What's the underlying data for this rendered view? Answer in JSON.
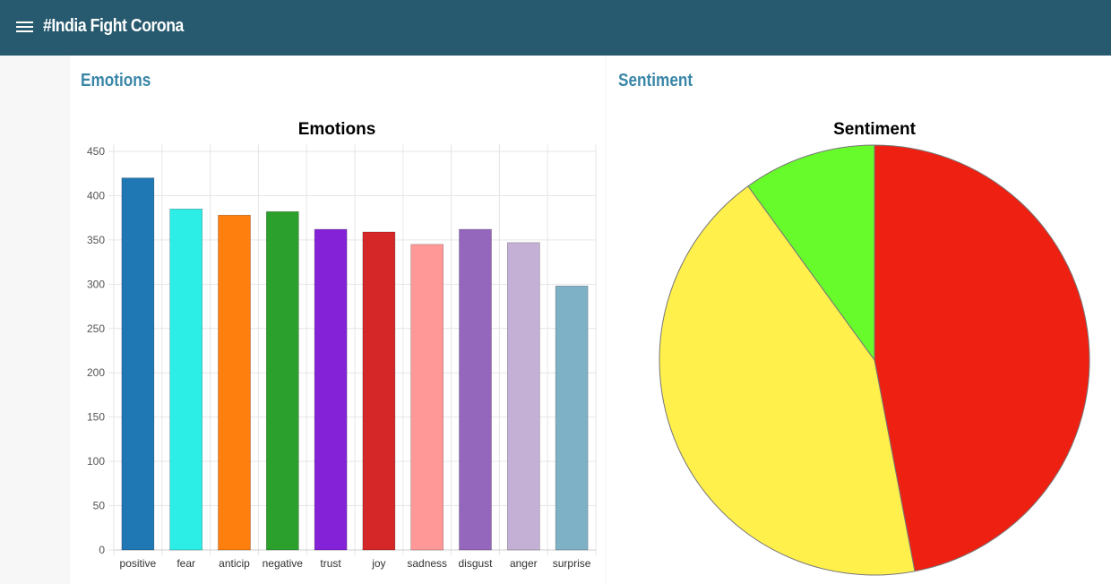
{
  "header": {
    "title": "#India Fight Corona",
    "menu_icon": "hamburger-menu-icon",
    "background": "#275a6e"
  },
  "panels": {
    "emotions": {
      "heading": "Emotions"
    },
    "sentiment": {
      "heading": "Sentiment"
    }
  },
  "chart_data": [
    {
      "type": "bar",
      "title": "Emotions",
      "categories": [
        "positive",
        "fear",
        "anticip",
        "negative",
        "trust",
        "joy",
        "sadness",
        "disgust",
        "anger",
        "surprise"
      ],
      "values": [
        420,
        385,
        378,
        382,
        362,
        359,
        345,
        362,
        347,
        298
      ],
      "colors": [
        "#1f77b4",
        "#2ceee6",
        "#ff7f0e",
        "#2ca02c",
        "#8322d6",
        "#d62728",
        "#ff9896",
        "#9467bd",
        "#c5b0d5",
        "#7fb1c6"
      ],
      "ylim": [
        0,
        450
      ],
      "yticks": [
        0,
        50,
        100,
        150,
        200,
        250,
        300,
        350,
        400,
        450
      ],
      "grid": true,
      "xlabel": "",
      "ylabel": ""
    },
    {
      "type": "pie",
      "title": "Sentiment",
      "values": [
        47,
        43,
        10
      ],
      "colors": [
        "#ee2012",
        "#fff04c",
        "#68fb2c"
      ],
      "legend": false
    }
  ]
}
